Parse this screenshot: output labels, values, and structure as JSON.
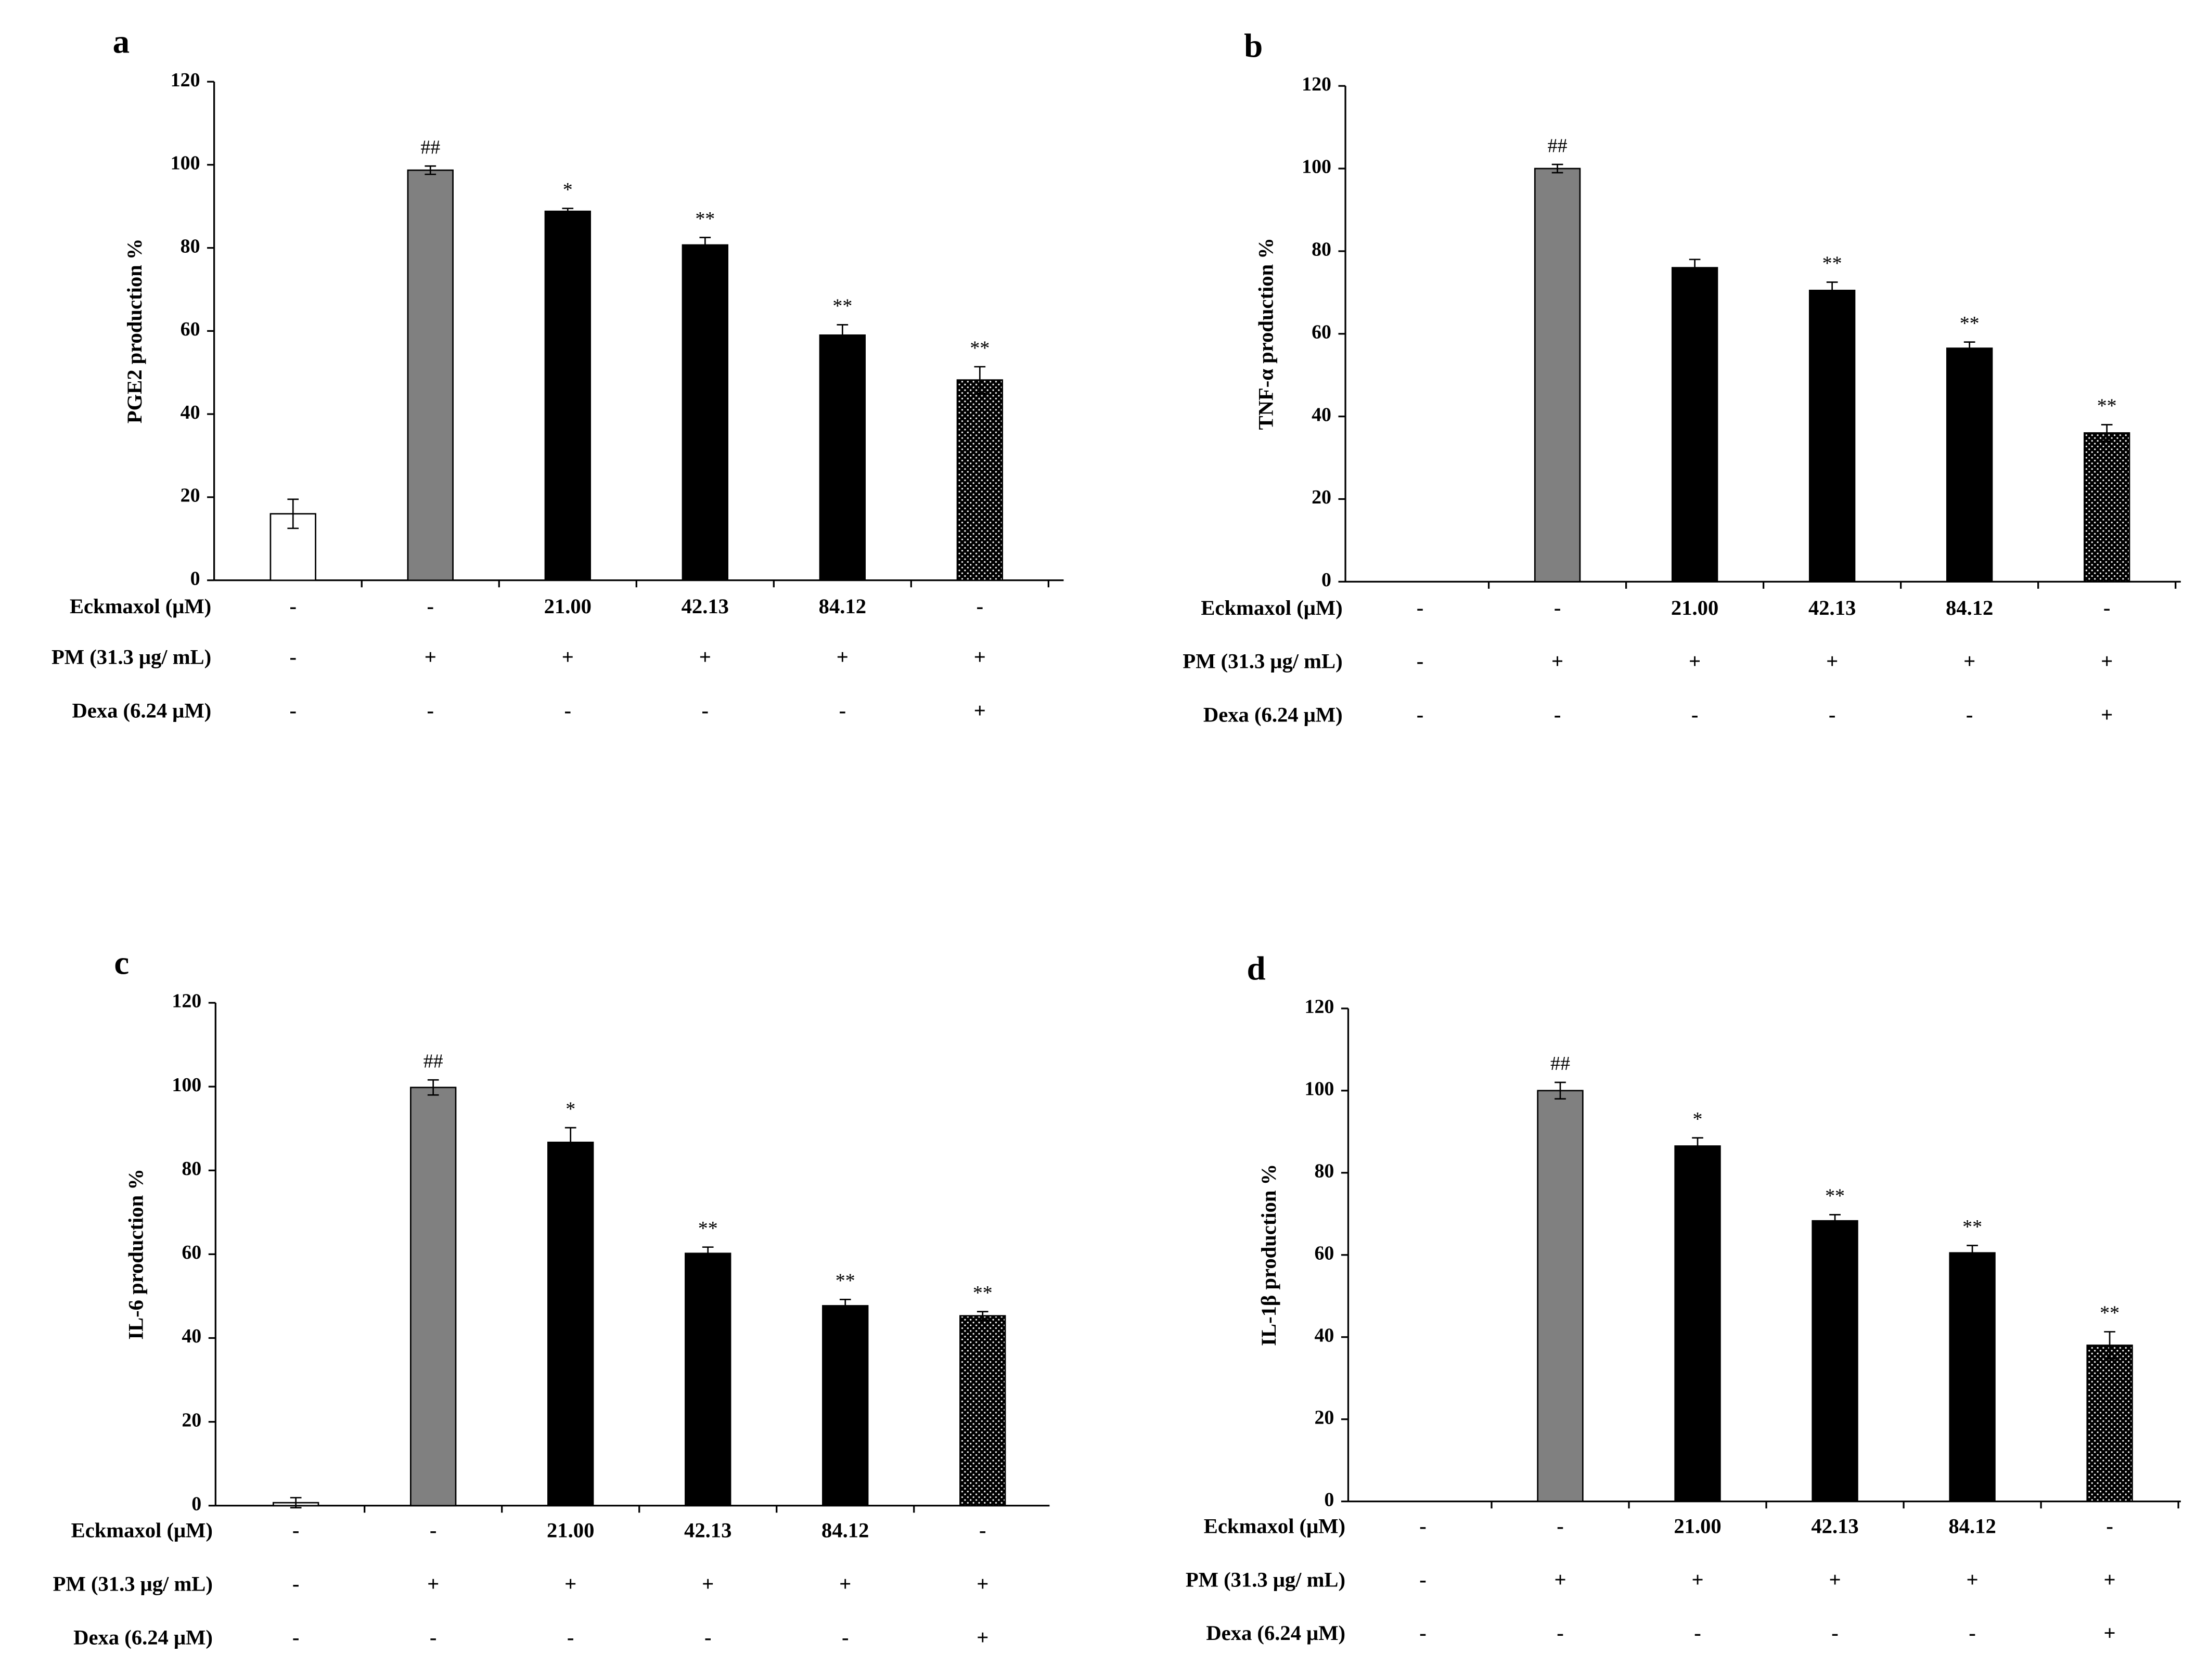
{
  "chart_data": [
    {
      "type": "bar",
      "panel": "a",
      "ylabel": "PGE2 production %",
      "values": [
        16,
        98.7,
        88.8,
        80.7,
        59,
        48.2
      ],
      "errors": [
        3.5,
        1,
        0.7,
        1.8,
        2.5,
        3.2
      ],
      "annotations": [
        null,
        "##",
        "*",
        "**",
        "**",
        "**"
      ],
      "colors": [
        "#ffffff",
        "#808080",
        "#000000",
        "#000000",
        "#000000",
        "dots"
      ],
      "ylim": [
        0,
        120
      ],
      "yticks": [
        0,
        20,
        40,
        60,
        80,
        100,
        120
      ],
      "rows": [
        {
          "label": "Eckmaxol (μM)",
          "values": [
            "-",
            "-",
            "21.00",
            "42.13",
            "84.12",
            "-"
          ]
        },
        {
          "label": "PM (31.3 μg/ mL)",
          "values": [
            "-",
            "+",
            "+",
            "+",
            "+",
            "+"
          ]
        },
        {
          "label": "Dexa (6.24 μM)",
          "values": [
            "-",
            "-",
            "-",
            "-",
            "-",
            "+"
          ]
        }
      ]
    },
    {
      "type": "bar",
      "panel": "b",
      "ylabel": "TNF-α production %",
      "values": [
        null,
        100,
        76,
        70.5,
        56.5,
        36
      ],
      "errors": [
        null,
        1,
        2,
        2,
        1.5,
        2
      ],
      "annotations": [
        null,
        "##",
        null,
        "**",
        "**",
        "**"
      ],
      "colors": [
        "#ffffff",
        "#808080",
        "#000000",
        "#000000",
        "#000000",
        "dots"
      ],
      "ylim": [
        0,
        120
      ],
      "yticks": [
        0,
        20,
        40,
        60,
        80,
        100,
        120
      ],
      "rows": [
        {
          "label": "Eckmaxol (μM)",
          "values": [
            "-",
            "-",
            "21.00",
            "42.13",
            "84.12",
            "-"
          ]
        },
        {
          "label": "PM (31.3 μg/ mL)",
          "values": [
            "-",
            "+",
            "+",
            "+",
            "+",
            "+"
          ]
        },
        {
          "label": "Dexa (6.24 μM)",
          "values": [
            "-",
            "-",
            "-",
            "-",
            "-",
            "+"
          ]
        }
      ]
    },
    {
      "type": "bar",
      "panel": "c",
      "ylabel": "IL-6 production %",
      "values": [
        0.7,
        99.8,
        86.7,
        60.2,
        47.7,
        45.3
      ],
      "errors": [
        1.2,
        1.8,
        3.5,
        1.5,
        1.5,
        1
      ],
      "annotations": [
        null,
        "##",
        "*",
        "**",
        "**",
        "**"
      ],
      "colors": [
        "#ffffff",
        "#808080",
        "#000000",
        "#000000",
        "#000000",
        "dots"
      ],
      "ylim": [
        0,
        120
      ],
      "yticks": [
        0,
        20,
        40,
        60,
        80,
        100,
        120
      ],
      "rows": [
        {
          "label": "Eckmaxol (μM)",
          "values": [
            "-",
            "-",
            "21.00",
            "42.13",
            "84.12",
            "-"
          ]
        },
        {
          "label": "PM (31.3 μg/ mL)",
          "values": [
            "-",
            "+",
            "+",
            "+",
            "+",
            "+"
          ]
        },
        {
          "label": "Dexa (6.24 μM)",
          "values": [
            "-",
            "-",
            "-",
            "-",
            "-",
            "+"
          ]
        }
      ]
    },
    {
      "type": "bar",
      "panel": "d",
      "ylabel": "IL-1β production %",
      "values": [
        null,
        100,
        86.5,
        68.3,
        60.5,
        38
      ],
      "errors": [
        null,
        2,
        2,
        1.5,
        1.8,
        3.3
      ],
      "annotations": [
        null,
        "##",
        "*",
        "**",
        "**",
        "**"
      ],
      "colors": [
        "#ffffff",
        "#808080",
        "#000000",
        "#000000",
        "#000000",
        "dots"
      ],
      "ylim": [
        0,
        120
      ],
      "yticks": [
        0,
        20,
        40,
        60,
        80,
        100,
        120
      ],
      "rows": [
        {
          "label": "Eckmaxol (μM)",
          "values": [
            "-",
            "-",
            "21.00",
            "42.13",
            "84.12",
            "-"
          ]
        },
        {
          "label": "PM (31.3 μg/ mL)",
          "values": [
            "-",
            "+",
            "+",
            "+",
            "+",
            "+"
          ]
        },
        {
          "label": "Dexa (6.24 μM)",
          "values": [
            "-",
            "-",
            "-",
            "-",
            "-",
            "+"
          ]
        }
      ]
    }
  ]
}
